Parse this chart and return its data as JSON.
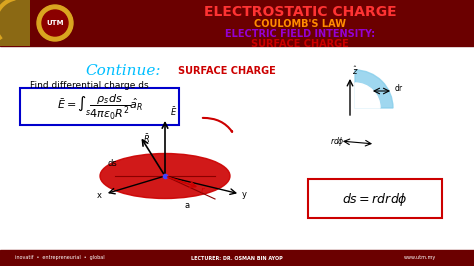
{
  "bg_color": "#ffffff",
  "header_bg": "#8B0000",
  "header_gold": "#DAA520",
  "title_text": "ELECTROSTATIC CHARGE",
  "subtitle1": "COULOMB'S LAW",
  "subtitle2": "ELECTRIC FIELD INTENSITY:",
  "subtitle3": "SURFACE CHARGE",
  "continue_text": "Continue:",
  "surface_charge_text": "SURFACE CHARGE",
  "find_text": "Find differential charge ds",
  "formula_box": true,
  "formula": "$\\bar{E} = \\int_s \\dfrac{\\rho_s ds}{4\\pi\\varepsilon_0 R^2} \\hat{a}_R$",
  "ds_formula": "$ds = rdrd\\phi$",
  "footer_bg": "#8B0000",
  "footer_text_left": "inovatif  •  entrepreneurial  •  global",
  "footer_text_mid": "LECTURER: DR. OSMAN BIN AYOP",
  "footer_text_right": "www.utm.my",
  "title_color": "#CC0000",
  "subtitle1_color": "#FF8C00",
  "subtitle2_color": "#800080",
  "subtitle3_color": "#CC0000",
  "continue_color": "#00BFFF",
  "surface_charge_label_color": "#CC0000",
  "find_text_color": "#000000",
  "utm_logo_color": "#DAA520"
}
